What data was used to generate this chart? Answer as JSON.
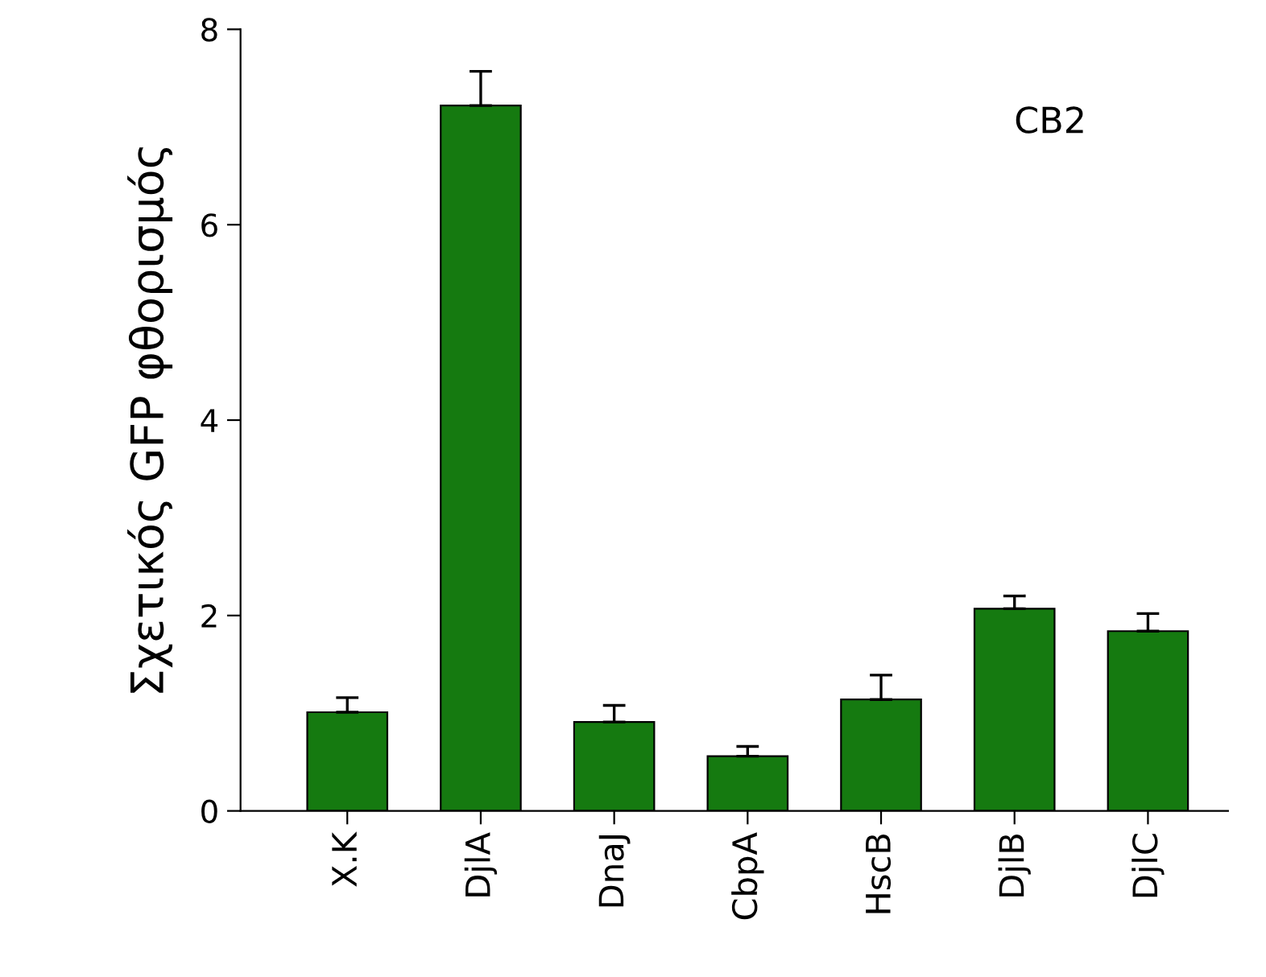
{
  "chart_data": {
    "type": "bar",
    "ylabel": "Σχετικός GFP φθορισμός",
    "categories": [
      "Χ.Κ",
      "DjlA",
      "DnaJ",
      "CbpA",
      "HscB",
      "DjlB",
      "DjlC"
    ],
    "series": [
      {
        "color": "#157a10",
        "values": [
          1.01,
          7.22,
          0.91,
          0.56,
          1.14,
          2.07,
          1.84
        ],
        "errors": [
          [
            1.01,
            1.16
          ],
          [
            7.22,
            7.57
          ],
          [
            0.91,
            1.08
          ],
          [
            0.56,
            0.66
          ],
          [
            1.14,
            1.39
          ],
          [
            2.07,
            2.2
          ],
          [
            1.84,
            2.02
          ]
        ]
      }
    ],
    "ylim": [
      0,
      8
    ],
    "yticks": [
      0,
      2,
      4,
      6,
      8
    ],
    "grid": false,
    "legend": false,
    "annotations": [
      "CB2"
    ]
  }
}
